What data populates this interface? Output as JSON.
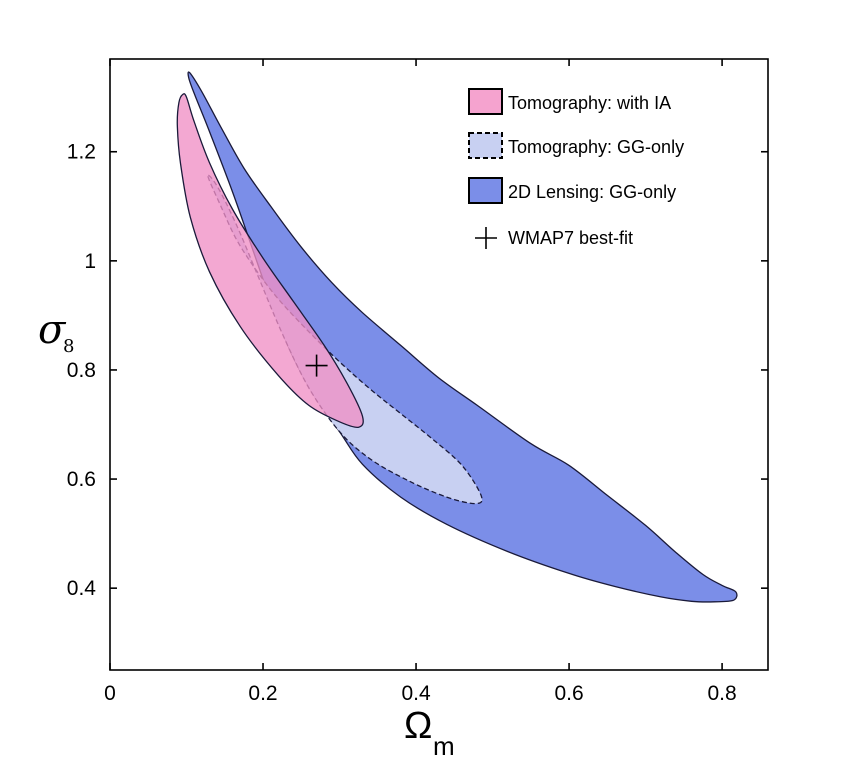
{
  "chart_data": {
    "type": "contour",
    "title": "",
    "xlabel": {
      "symbol": "Ω",
      "subscript": "m"
    },
    "ylabel": {
      "symbol": "σ",
      "subscript": "8"
    },
    "xlim": [
      0,
      0.86
    ],
    "ylim": [
      0.25,
      1.37
    ],
    "xticks": [
      {
        "value": 0,
        "label": "0"
      },
      {
        "value": 0.2,
        "label": "0.2"
      },
      {
        "value": 0.4,
        "label": "0.4"
      },
      {
        "value": 0.6,
        "label": "0.6"
      },
      {
        "value": 0.8,
        "label": "0.8"
      }
    ],
    "yticks": [
      {
        "value": 0.4,
        "label": "0.4"
      },
      {
        "value": 0.6,
        "label": "0.6"
      },
      {
        "value": 0.8,
        "label": "0.8"
      },
      {
        "value": 1.0,
        "label": "1"
      },
      {
        "value": 1.2,
        "label": "1.2"
      }
    ],
    "series": [
      {
        "name": "2D Lensing:  GG-only",
        "fill": "#7b8ee8",
        "stroke": "#1a1a3a",
        "dashed": false,
        "contour": [
          [
            0.104,
            1.345
          ],
          [
            0.12,
            1.31
          ],
          [
            0.145,
            1.245
          ],
          [
            0.175,
            1.17
          ],
          [
            0.21,
            1.1
          ],
          [
            0.25,
            1.025
          ],
          [
            0.29,
            0.96
          ],
          [
            0.33,
            0.905
          ],
          [
            0.38,
            0.845
          ],
          [
            0.43,
            0.785
          ],
          [
            0.48,
            0.735
          ],
          [
            0.55,
            0.665
          ],
          [
            0.6,
            0.625
          ],
          [
            0.65,
            0.57
          ],
          [
            0.7,
            0.515
          ],
          [
            0.74,
            0.465
          ],
          [
            0.775,
            0.425
          ],
          [
            0.8,
            0.405
          ],
          [
            0.818,
            0.393
          ],
          [
            0.815,
            0.378
          ],
          [
            0.79,
            0.375
          ],
          [
            0.76,
            0.376
          ],
          [
            0.72,
            0.384
          ],
          [
            0.66,
            0.403
          ],
          [
            0.6,
            0.427
          ],
          [
            0.52,
            0.467
          ],
          [
            0.44,
            0.517
          ],
          [
            0.38,
            0.567
          ],
          [
            0.33,
            0.627
          ],
          [
            0.3,
            0.687
          ],
          [
            0.265,
            0.757
          ],
          [
            0.235,
            0.837
          ],
          [
            0.21,
            0.927
          ],
          [
            0.185,
            1.027
          ],
          [
            0.16,
            1.127
          ],
          [
            0.13,
            1.237
          ],
          [
            0.11,
            1.307
          ],
          [
            0.103,
            1.335
          ]
        ]
      },
      {
        "name": "Tomography: GG-only",
        "fill": "#c8d0f2",
        "stroke": "#1a1a3a",
        "dashed": true,
        "contour": [
          [
            0.128,
            1.155
          ],
          [
            0.145,
            1.1
          ],
          [
            0.165,
            1.04
          ],
          [
            0.19,
            0.985
          ],
          [
            0.22,
            0.93
          ],
          [
            0.26,
            0.87
          ],
          [
            0.3,
            0.815
          ],
          [
            0.34,
            0.765
          ],
          [
            0.38,
            0.72
          ],
          [
            0.42,
            0.675
          ],
          [
            0.46,
            0.625
          ],
          [
            0.485,
            0.57
          ],
          [
            0.478,
            0.555
          ],
          [
            0.44,
            0.567
          ],
          [
            0.39,
            0.597
          ],
          [
            0.34,
            0.637
          ],
          [
            0.3,
            0.687
          ],
          [
            0.26,
            0.767
          ],
          [
            0.225,
            0.867
          ],
          [
            0.195,
            0.967
          ],
          [
            0.165,
            1.067
          ],
          [
            0.14,
            1.137
          ]
        ]
      },
      {
        "name": "Tomography: with IA",
        "fill": "#f090c5",
        "stroke": "#1a1a3a",
        "dashed": false,
        "opacity": 0.78,
        "contour": [
          [
            0.09,
            1.29
          ],
          [
            0.095,
            1.305
          ],
          [
            0.1,
            1.3
          ],
          [
            0.11,
            1.255
          ],
          [
            0.13,
            1.18
          ],
          [
            0.16,
            1.095
          ],
          [
            0.2,
            1.005
          ],
          [
            0.24,
            0.925
          ],
          [
            0.28,
            0.845
          ],
          [
            0.31,
            0.775
          ],
          [
            0.33,
            0.715
          ],
          [
            0.325,
            0.695
          ],
          [
            0.3,
            0.705
          ],
          [
            0.26,
            0.735
          ],
          [
            0.22,
            0.79
          ],
          [
            0.17,
            0.88
          ],
          [
            0.13,
            0.98
          ],
          [
            0.105,
            1.08
          ],
          [
            0.092,
            1.18
          ],
          [
            0.088,
            1.25
          ]
        ]
      }
    ],
    "marker": {
      "name": "WMAP7 best-fit",
      "x": 0.27,
      "y": 0.808,
      "symbol": "+"
    },
    "legend": {
      "position": "top-right",
      "entries": [
        {
          "label": "Tomography: with IA",
          "swatch": "pink-solid"
        },
        {
          "label": "Tomography: GG-only",
          "swatch": "lightblue-dashed"
        },
        {
          "label": "2D Lensing:  GG-only",
          "swatch": "blue-solid"
        },
        {
          "label": "WMAP7 best-fit",
          "swatch": "plus"
        }
      ]
    }
  }
}
